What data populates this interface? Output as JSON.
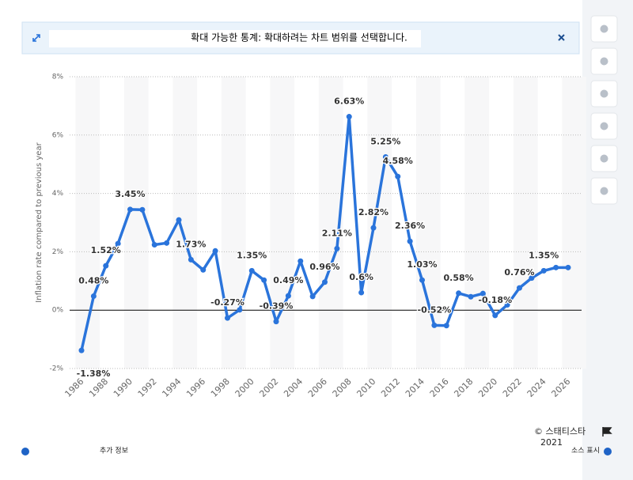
{
  "banner": "확대 가능한 통계: 확대하려는 차트 범위를 선택합니다.",
  "footer": {
    "copyright": "© 스태티스타",
    "year": "2021",
    "more_info": "추가 정보",
    "source": "소스 표시"
  },
  "chart_data": {
    "type": "line",
    "y_label": "Inflation rate compared to previous year",
    "categories": [
      "1986",
      null,
      "1988",
      null,
      "1990",
      null,
      "1992",
      null,
      "1994",
      null,
      "1996",
      null,
      "1998",
      null,
      "2000",
      null,
      "2002",
      null,
      "2004",
      null,
      "2006",
      null,
      "2008",
      null,
      "2010",
      null,
      "2012",
      null,
      "2014",
      null,
      "2016",
      null,
      "2018",
      null,
      "2020",
      null,
      "2022",
      null,
      "2024",
      null,
      "2026"
    ],
    "series": [
      {
        "name": "Inflation rate",
        "color": "#2a74db",
        "values": [
          -1.38,
          0.48,
          1.52,
          2.28,
          3.45,
          3.44,
          2.24,
          2.3,
          3.09,
          1.73,
          1.38,
          2.03,
          -0.27,
          0.01,
          1.35,
          1.03,
          -0.39,
          0.49,
          1.68,
          0.47,
          0.96,
          2.11,
          6.63,
          0.6,
          2.82,
          5.25,
          4.58,
          2.36,
          1.03,
          -0.52,
          -0.53,
          0.58,
          0.46,
          0.57,
          -0.18,
          0.18,
          0.76,
          1.1,
          1.35,
          1.46,
          1.46
        ],
        "value_labels": [
          "-1.38%",
          "0.48%",
          "1.52%",
          null,
          "3.45%",
          null,
          null,
          null,
          null,
          "1.73%",
          null,
          null,
          "-0.27%",
          null,
          "1.35%",
          null,
          "-0.39%",
          "0.49%",
          null,
          null,
          "0.96%",
          "2.11%",
          "6.63%",
          "0.6%",
          "2.82%",
          "5.25%",
          "4.58%",
          "2.36%",
          "1.03%",
          "-0.52%",
          null,
          "0.58%",
          null,
          null,
          "-0.18%",
          null,
          "0.76%",
          null,
          "1.35%",
          null,
          null
        ]
      }
    ],
    "ylim": [
      -2,
      8
    ],
    "yticks": [
      {
        "value": -2,
        "label": "-2%"
      },
      {
        "value": 0,
        "label": "0%"
      },
      {
        "value": 2,
        "label": "2%"
      },
      {
        "value": 4,
        "label": "4%"
      },
      {
        "value": 6,
        "label": "6%"
      },
      {
        "value": 8,
        "label": "8%"
      }
    ],
    "grid": true
  }
}
